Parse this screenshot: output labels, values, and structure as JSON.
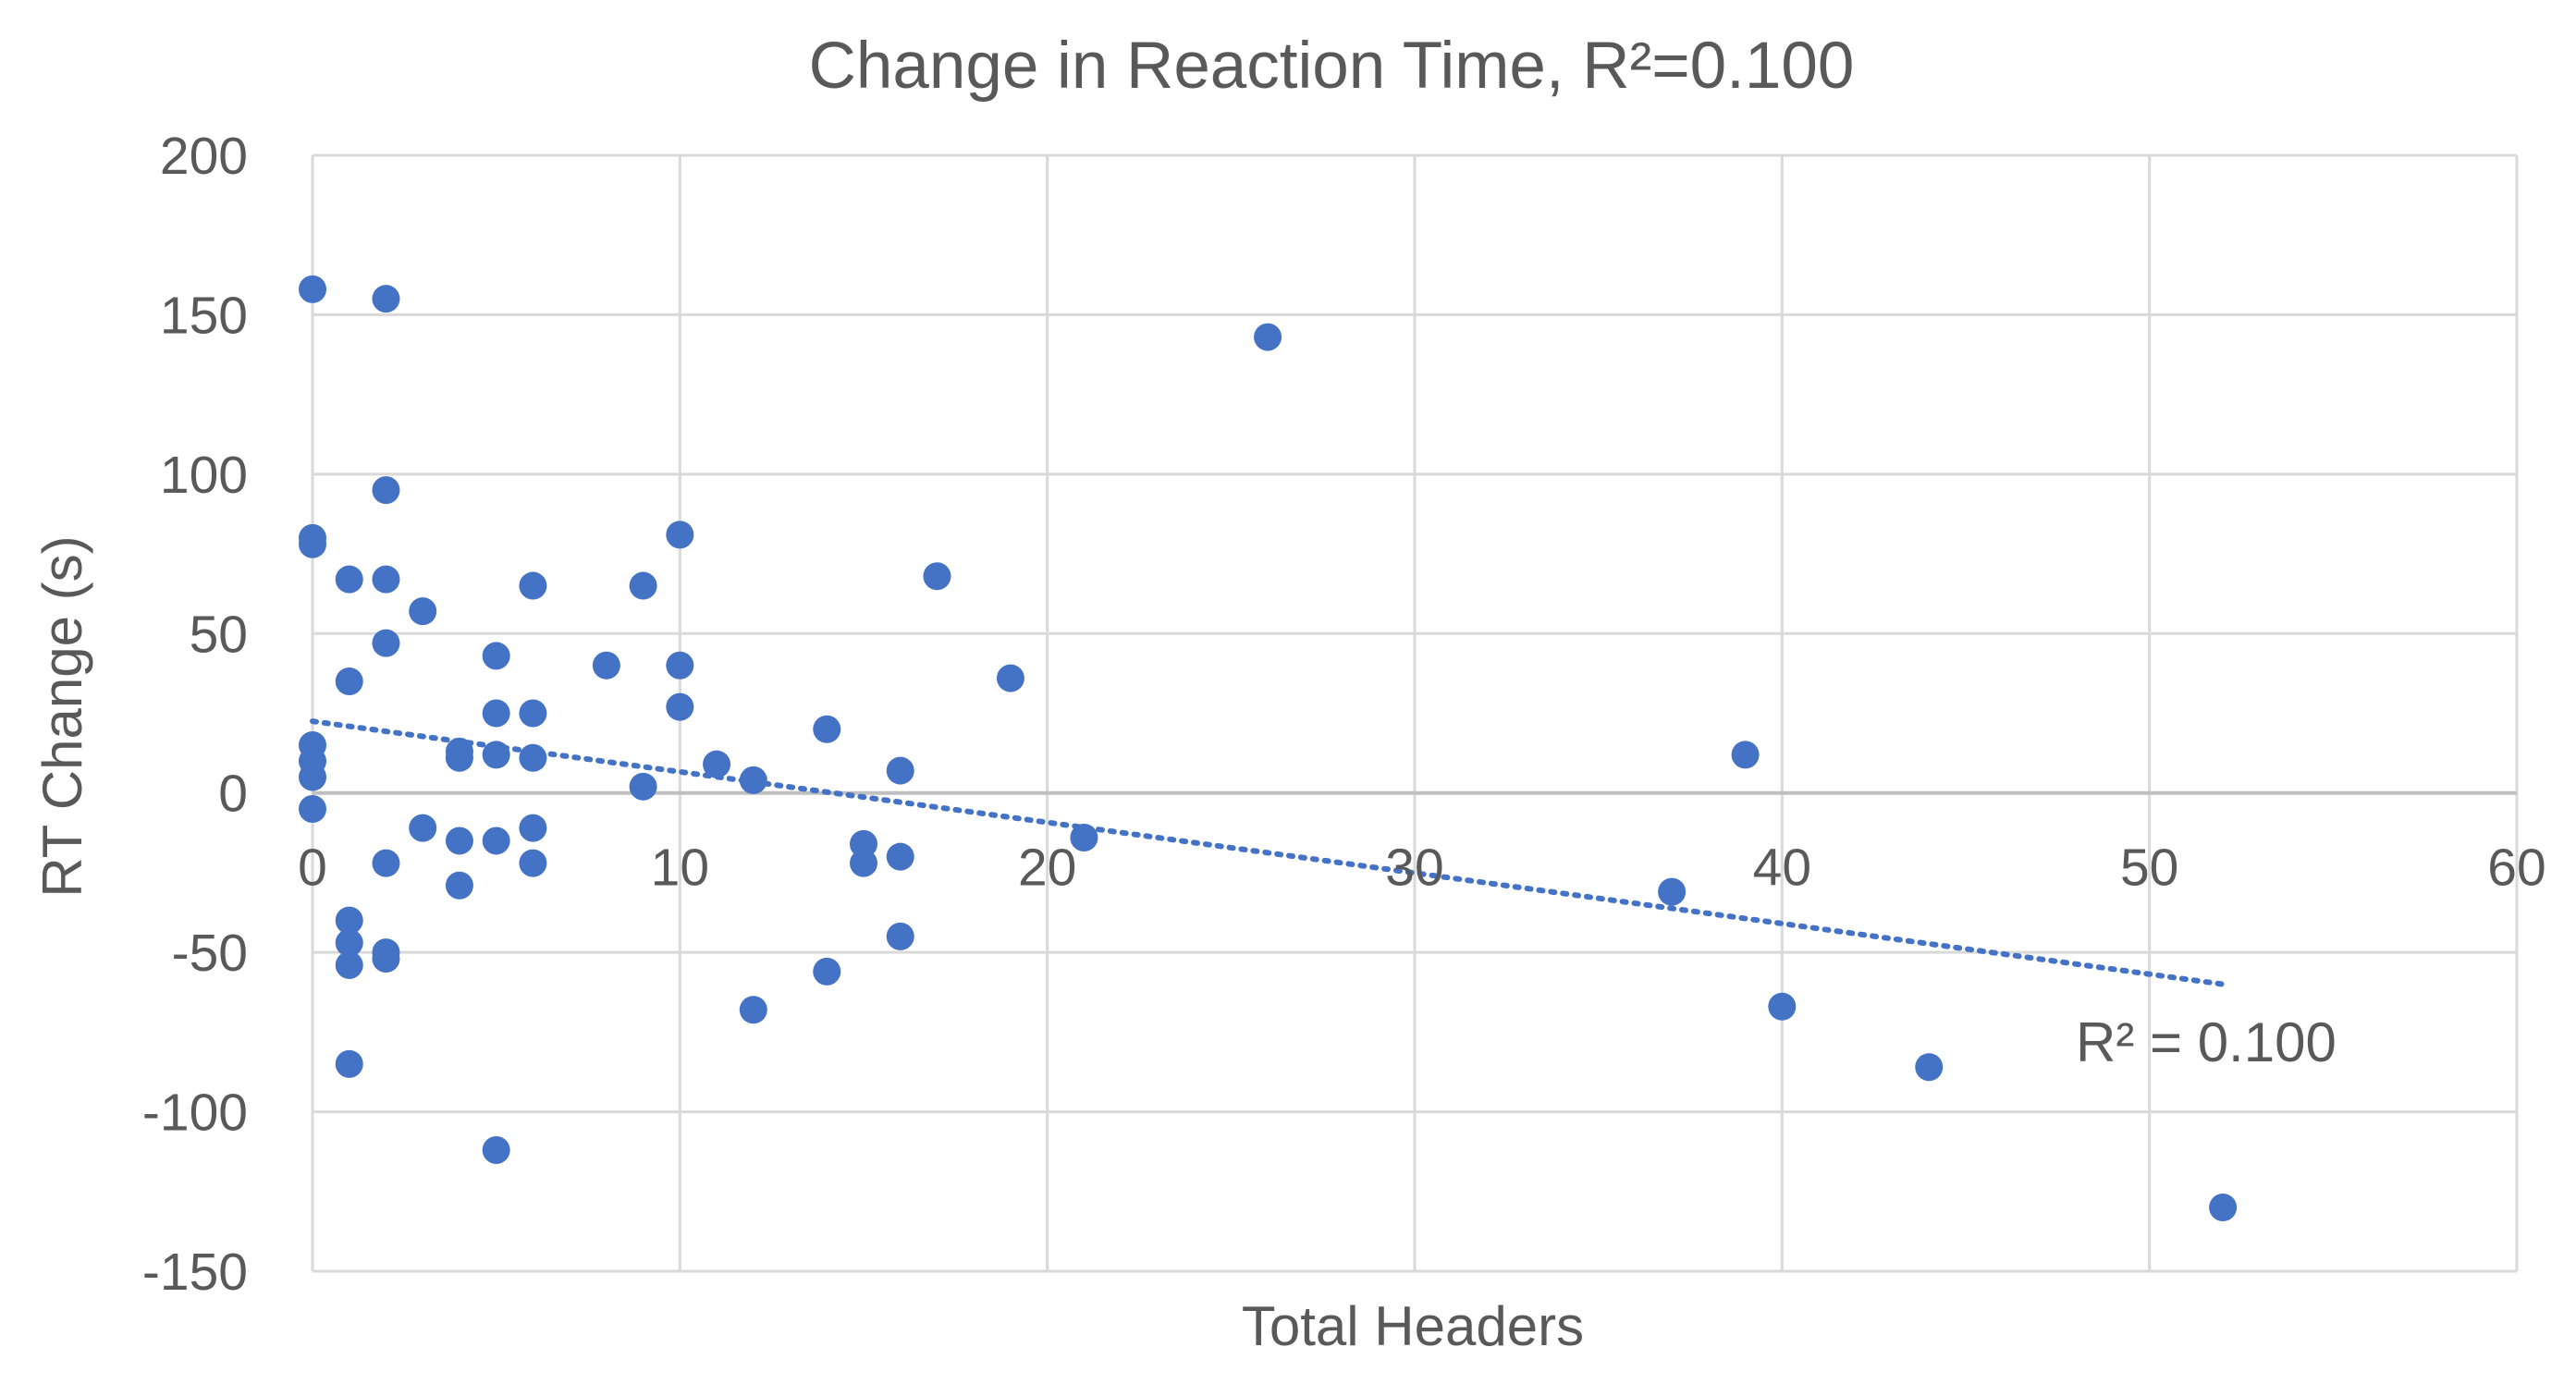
{
  "chart_data": {
    "type": "scatter",
    "title": "Change in Reaction Time, R²=0.100",
    "xlabel": "Total Headers",
    "ylabel": "RT Change (s)",
    "xlim": [
      0,
      60
    ],
    "ylim": [
      -150,
      200
    ],
    "xticks": [
      0,
      10,
      20,
      30,
      40,
      50,
      60
    ],
    "yticks": [
      -150,
      -100,
      -50,
      0,
      50,
      100,
      150,
      200
    ],
    "grid": true,
    "legend": "none",
    "series": [
      {
        "color": "#4472C4",
        "points": [
          {
            "x": 0,
            "y": 158
          },
          {
            "x": 0,
            "y": 80
          },
          {
            "x": 0,
            "y": 78
          },
          {
            "x": 0,
            "y": 15
          },
          {
            "x": 0,
            "y": 10
          },
          {
            "x": 0,
            "y": 5
          },
          {
            "x": 0,
            "y": -5
          },
          {
            "x": 1,
            "y": 67
          },
          {
            "x": 1,
            "y": 35
          },
          {
            "x": 1,
            "y": -40
          },
          {
            "x": 1,
            "y": -47
          },
          {
            "x": 1,
            "y": -54
          },
          {
            "x": 1,
            "y": -85
          },
          {
            "x": 2,
            "y": 155
          },
          {
            "x": 2,
            "y": 95
          },
          {
            "x": 2,
            "y": 67
          },
          {
            "x": 2,
            "y": 47
          },
          {
            "x": 2,
            "y": -22
          },
          {
            "x": 2,
            "y": -50
          },
          {
            "x": 2,
            "y": -52
          },
          {
            "x": 3,
            "y": 57
          },
          {
            "x": 3,
            "y": -11
          },
          {
            "x": 4,
            "y": 13
          },
          {
            "x": 4,
            "y": 11
          },
          {
            "x": 4,
            "y": -15
          },
          {
            "x": 4,
            "y": -29
          },
          {
            "x": 5,
            "y": 43
          },
          {
            "x": 5,
            "y": 25
          },
          {
            "x": 5,
            "y": 12
          },
          {
            "x": 5,
            "y": -15
          },
          {
            "x": 5,
            "y": -112
          },
          {
            "x": 6,
            "y": 65
          },
          {
            "x": 6,
            "y": 25
          },
          {
            "x": 6,
            "y": 11
          },
          {
            "x": 6,
            "y": -11
          },
          {
            "x": 6,
            "y": -22
          },
          {
            "x": 8,
            "y": 40
          },
          {
            "x": 9,
            "y": 65
          },
          {
            "x": 9,
            "y": 2
          },
          {
            "x": 10,
            "y": 81
          },
          {
            "x": 10,
            "y": 40
          },
          {
            "x": 10,
            "y": 27
          },
          {
            "x": 11,
            "y": 9
          },
          {
            "x": 12,
            "y": 4
          },
          {
            "x": 12,
            "y": -68
          },
          {
            "x": 14,
            "y": 20
          },
          {
            "x": 14,
            "y": -56
          },
          {
            "x": 15,
            "y": -16
          },
          {
            "x": 15,
            "y": -22
          },
          {
            "x": 16,
            "y": 7
          },
          {
            "x": 16,
            "y": -20
          },
          {
            "x": 16,
            "y": -45
          },
          {
            "x": 17,
            "y": 68
          },
          {
            "x": 19,
            "y": 36
          },
          {
            "x": 21,
            "y": -14
          },
          {
            "x": 26,
            "y": 143
          },
          {
            "x": 37,
            "y": -31
          },
          {
            "x": 39,
            "y": 12
          },
          {
            "x": 40,
            "y": -67
          },
          {
            "x": 44,
            "y": -86
          },
          {
            "x": 52,
            "y": -130
          }
        ]
      }
    ],
    "trendline": {
      "style": "dotted",
      "color": "#4472C4",
      "start": {
        "x": 0,
        "y": 22.5
      },
      "end": {
        "x": 52,
        "y": -60
      },
      "label": "R² = 0.100"
    }
  }
}
